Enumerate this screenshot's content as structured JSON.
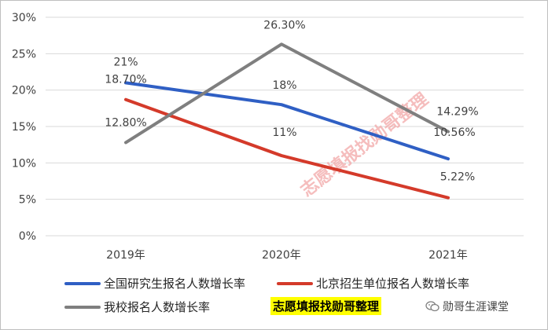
{
  "chart_data": {
    "type": "line",
    "categories": [
      "2019年",
      "2020年",
      "2021年"
    ],
    "ylim": [
      0,
      30
    ],
    "yticks": [
      "0%",
      "5%",
      "10%",
      "15%",
      "20%",
      "25%",
      "30%"
    ],
    "grid": true,
    "legend_position": "bottom",
    "series": [
      {
        "name": "全国研究生报名人数增长率",
        "values": [
          21,
          18,
          10.56
        ],
        "labels": [
          "21%",
          "18%",
          "10.56%"
        ],
        "color": "#2f5fc4"
      },
      {
        "name": "北京招生单位报名人数增长率",
        "values": [
          18.7,
          11,
          5.22
        ],
        "labels": [
          "18.70%",
          "11%",
          "5.22%"
        ],
        "color": "#d43a2a"
      },
      {
        "name": "我校报名人数增长率",
        "values": [
          12.8,
          26.3,
          14.29
        ],
        "labels": [
          "12.80%",
          "26.30%",
          "14.29%"
        ],
        "color": "#7f7f7f"
      }
    ]
  },
  "watermark": "志愿填报找勋哥整理",
  "highlight_text": "志愿填报找勋哥整理",
  "brand": {
    "icon": "wechat-icon",
    "text": "勋哥生涯课堂"
  }
}
